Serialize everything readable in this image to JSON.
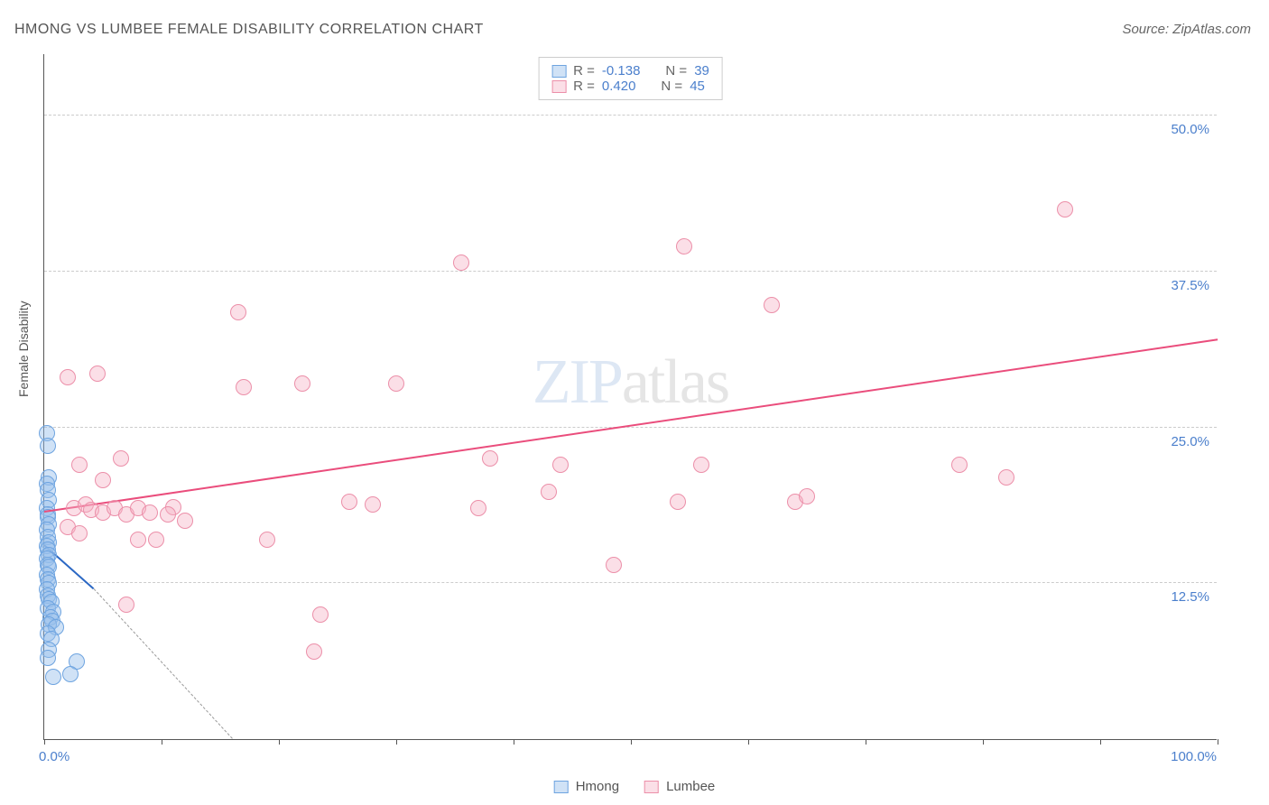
{
  "title": "HMONG VS LUMBEE FEMALE DISABILITY CORRELATION CHART",
  "source": "Source: ZipAtlas.com",
  "ylabel": "Female Disability",
  "watermark": "ZIPatlas",
  "chart": {
    "type": "scatter",
    "xlim": [
      0,
      100
    ],
    "ylim": [
      0,
      55
    ],
    "x_ticks": [
      0,
      10,
      20,
      30,
      40,
      50,
      60,
      70,
      80,
      90,
      100
    ],
    "y_gridlines": [
      12.5,
      25.0,
      37.5,
      50.0
    ],
    "y_grid_labels": [
      "12.5%",
      "25.0%",
      "37.5%",
      "50.0%"
    ],
    "x_axis_left_label": "0.0%",
    "x_axis_right_label": "100.0%",
    "background_color": "#ffffff",
    "grid_color": "#cccccc",
    "point_radius": 9,
    "series": [
      {
        "name": "Hmong",
        "fill": "rgba(150,190,235,0.45)",
        "stroke": "#6ea4e0",
        "trend_color": "#2b68c4",
        "r": "-0.138",
        "n": "39",
        "trend": {
          "x1": 0,
          "y1": 15.5,
          "x2": 4.2,
          "y2": 12.0
        },
        "trend_dash": {
          "x1": 4.2,
          "y1": 12.0,
          "x2": 16,
          "y2": 0
        },
        "points": [
          [
            0.2,
            24.5
          ],
          [
            0.3,
            23.5
          ],
          [
            0.4,
            21.0
          ],
          [
            0.2,
            20.5
          ],
          [
            0.3,
            20.0
          ],
          [
            0.4,
            19.2
          ],
          [
            0.2,
            18.5
          ],
          [
            0.3,
            18.0
          ],
          [
            0.3,
            17.8
          ],
          [
            0.4,
            17.2
          ],
          [
            0.2,
            16.8
          ],
          [
            0.3,
            16.2
          ],
          [
            0.4,
            15.8
          ],
          [
            0.2,
            15.5
          ],
          [
            0.3,
            15.2
          ],
          [
            0.4,
            14.8
          ],
          [
            0.2,
            14.5
          ],
          [
            0.3,
            14.0
          ],
          [
            0.4,
            13.8
          ],
          [
            0.2,
            13.2
          ],
          [
            0.3,
            12.8
          ],
          [
            0.4,
            12.5
          ],
          [
            0.2,
            12.0
          ],
          [
            0.3,
            11.5
          ],
          [
            0.4,
            11.2
          ],
          [
            0.6,
            11.0
          ],
          [
            0.3,
            10.5
          ],
          [
            0.8,
            10.2
          ],
          [
            0.5,
            9.8
          ],
          [
            0.7,
            9.5
          ],
          [
            0.4,
            9.2
          ],
          [
            1.0,
            9.0
          ],
          [
            0.3,
            8.5
          ],
          [
            0.6,
            8.0
          ],
          [
            0.4,
            7.2
          ],
          [
            0.3,
            6.5
          ],
          [
            2.8,
            6.2
          ],
          [
            0.8,
            5.0
          ],
          [
            2.2,
            5.2
          ]
        ]
      },
      {
        "name": "Lumbee",
        "fill": "rgba(245,175,195,0.40)",
        "stroke": "#ec8fa9",
        "trend_color": "#ea4d7c",
        "r": "0.420",
        "n": "45",
        "trend": {
          "x1": 0,
          "y1": 18.2,
          "x2": 100,
          "y2": 32.0
        },
        "points": [
          [
            2.0,
            29.0
          ],
          [
            4.5,
            29.3
          ],
          [
            3.0,
            22.0
          ],
          [
            5.0,
            20.8
          ],
          [
            6.5,
            22.5
          ],
          [
            2.5,
            18.5
          ],
          [
            3.5,
            18.8
          ],
          [
            4.0,
            18.4
          ],
          [
            5.0,
            18.2
          ],
          [
            6.0,
            18.5
          ],
          [
            7.0,
            18.0
          ],
          [
            8.0,
            18.5
          ],
          [
            9.0,
            18.2
          ],
          [
            11.0,
            18.6
          ],
          [
            10.5,
            18.0
          ],
          [
            12.0,
            17.5
          ],
          [
            8.0,
            16.0
          ],
          [
            9.5,
            16.0
          ],
          [
            2.0,
            17.0
          ],
          [
            3.0,
            16.5
          ],
          [
            7.0,
            10.8
          ],
          [
            16.5,
            34.2
          ],
          [
            19.0,
            16.0
          ],
          [
            17.0,
            28.2
          ],
          [
            22.0,
            28.5
          ],
          [
            23.0,
            7.0
          ],
          [
            23.5,
            10.0
          ],
          [
            30.0,
            28.5
          ],
          [
            26.0,
            19.0
          ],
          [
            28.0,
            18.8
          ],
          [
            35.5,
            38.2
          ],
          [
            38.0,
            22.5
          ],
          [
            43.0,
            19.8
          ],
          [
            44.0,
            22.0
          ],
          [
            48.5,
            14.0
          ],
          [
            54.5,
            39.5
          ],
          [
            56.0,
            22.0
          ],
          [
            62.0,
            34.8
          ],
          [
            64.0,
            19.0
          ],
          [
            65.0,
            19.5
          ],
          [
            78.0,
            22.0
          ],
          [
            82.0,
            21.0
          ],
          [
            87.0,
            42.5
          ],
          [
            54.0,
            19.0
          ],
          [
            37.0,
            18.5
          ]
        ]
      }
    ]
  },
  "legend_bottom": [
    {
      "label": "Hmong",
      "fill": "rgba(150,190,235,0.45)",
      "stroke": "#6ea4e0"
    },
    {
      "label": "Lumbee",
      "fill": "rgba(245,175,195,0.40)",
      "stroke": "#ec8fa9"
    }
  ]
}
